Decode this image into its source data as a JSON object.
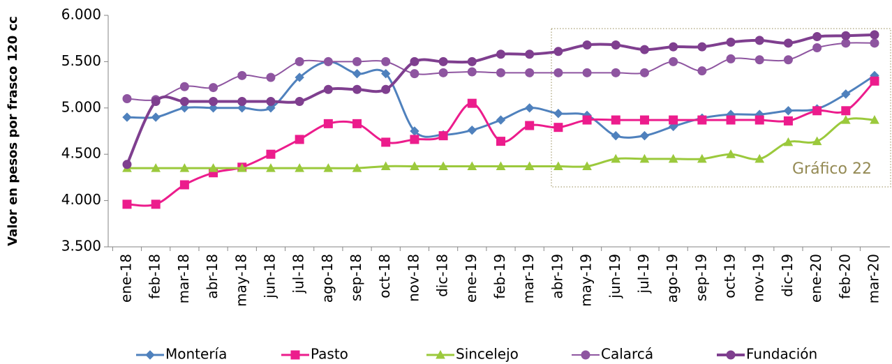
{
  "chart_data": {
    "type": "line",
    "y_label": "Valor en pesos por frasco 120 cc",
    "annotation": "Gráfico 22",
    "categories": [
      "ene-18",
      "feb-18",
      "mar-18",
      "abr-18",
      "may-18",
      "jun-18",
      "jul-18",
      "ago-18",
      "sep-18",
      "oct-18",
      "nov-18",
      "dic-18",
      "ene-19",
      "feb-19",
      "mar-19",
      "abr-19",
      "may-19",
      "jun-19",
      "jul-19",
      "ago-19",
      "sep-19",
      "oct-19",
      "nov-19",
      "dic-19",
      "ene-20",
      "feb-20",
      "mar-20"
    ],
    "series": [
      {
        "name": "Montería",
        "color": "#4f81bd",
        "marker": "diamond",
        "width": 3,
        "values": [
          4900,
          4900,
          5000,
          5000,
          5000,
          5000,
          5330,
          5500,
          5370,
          5370,
          4750,
          4710,
          4760,
          4870,
          5000,
          4940,
          4920,
          4700,
          4700,
          4800,
          4890,
          4930,
          4930,
          4970,
          4990,
          5150,
          5350
        ]
      },
      {
        "name": "Pasto",
        "color": "#ec1c8c",
        "marker": "square",
        "width": 3,
        "values": [
          3960,
          3960,
          4170,
          4300,
          4360,
          4500,
          4660,
          4830,
          4830,
          4630,
          4660,
          4700,
          5050,
          4640,
          4810,
          4790,
          4870,
          4870,
          4870,
          4870,
          4870,
          4870,
          4870,
          4860,
          4970,
          4970,
          5290
        ]
      },
      {
        "name": "Sincelejo",
        "color": "#9bc93c",
        "marker": "triangle",
        "width": 3,
        "values": [
          4350,
          4350,
          4350,
          4350,
          4350,
          4350,
          4350,
          4350,
          4350,
          4370,
          4370,
          4370,
          4370,
          4370,
          4370,
          4370,
          4370,
          4450,
          4450,
          4450,
          4450,
          4500,
          4450,
          4630,
          4640,
          4870,
          4870
        ]
      },
      {
        "name": "Calarcá",
        "color": "#8e55a0",
        "marker": "circle",
        "width": 2,
        "values": [
          5100,
          5090,
          5230,
          5220,
          5350,
          5330,
          5500,
          5500,
          5500,
          5500,
          5370,
          5380,
          5390,
          5380,
          5380,
          5380,
          5380,
          5380,
          5380,
          5500,
          5400,
          5530,
          5520,
          5520,
          5650,
          5700,
          5700
        ]
      },
      {
        "name": "Fundación",
        "color": "#7f3f8f",
        "marker": "circle",
        "width": 4,
        "values": [
          4390,
          5070,
          5070,
          5070,
          5070,
          5070,
          5070,
          5200,
          5200,
          5200,
          5500,
          5500,
          5500,
          5580,
          5580,
          5610,
          5680,
          5680,
          5630,
          5660,
          5660,
          5710,
          5730,
          5700,
          5770,
          5780,
          5790
        ]
      }
    ],
    "ylim": [
      3500,
      6000
    ],
    "yticks": [
      {
        "value": 3500,
        "label": "3.500"
      },
      {
        "value": 4000,
        "label": "4.000"
      },
      {
        "value": 4500,
        "label": "4.500"
      },
      {
        "value": 5000,
        "label": "5.000"
      },
      {
        "value": 5500,
        "label": "5.500"
      },
      {
        "value": 6000,
        "label": "6.000"
      }
    ],
    "legend": "bottom"
  }
}
